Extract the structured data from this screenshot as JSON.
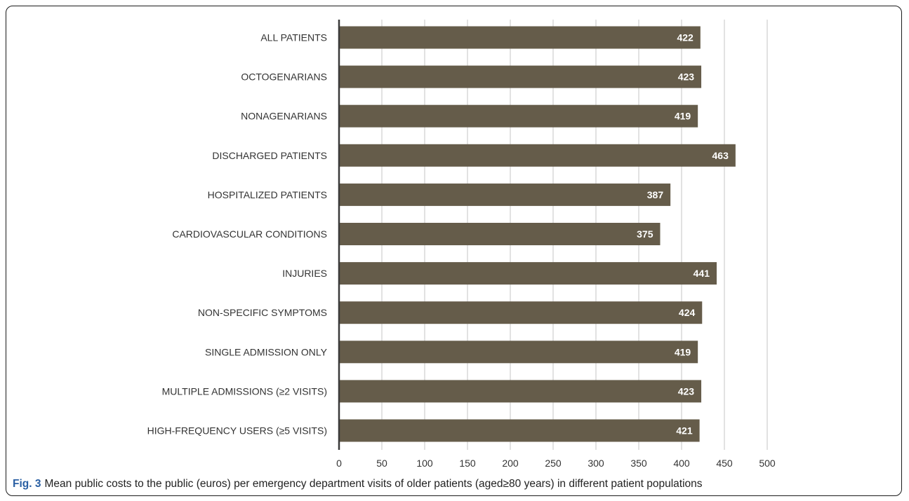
{
  "chart_data": {
    "type": "bar",
    "orientation": "horizontal",
    "categories": [
      "ALL PATIENTS",
      "OCTOGENARIANS",
      "NONAGENARIANS",
      "DISCHARGED PATIENTS",
      "HOSPITALIZED PATIENTS",
      "CARDIOVASCULAR CONDITIONS",
      "INJURIES",
      "NON-SPECIFIC SYMPTOMS",
      "SINGLE ADMISSION ONLY",
      "MULTIPLE ADMISSIONS (≥2 VISITS)",
      "HIGH-FREQUENCY USERS (≥5 VISITS)"
    ],
    "values": [
      422,
      423,
      419,
      463,
      387,
      375,
      441,
      424,
      419,
      423,
      421
    ],
    "xlim": [
      0,
      500
    ],
    "xticks": [
      0,
      50,
      100,
      150,
      200,
      250,
      300,
      350,
      400,
      450,
      500
    ],
    "grid": true,
    "bar_color": "#655c4a",
    "data_labels": true
  },
  "caption": {
    "label": "Fig. 3",
    "text": "Mean public costs to the public (euros) per emergency department visits of older patients (aged≥80 years) in different patient populations"
  }
}
